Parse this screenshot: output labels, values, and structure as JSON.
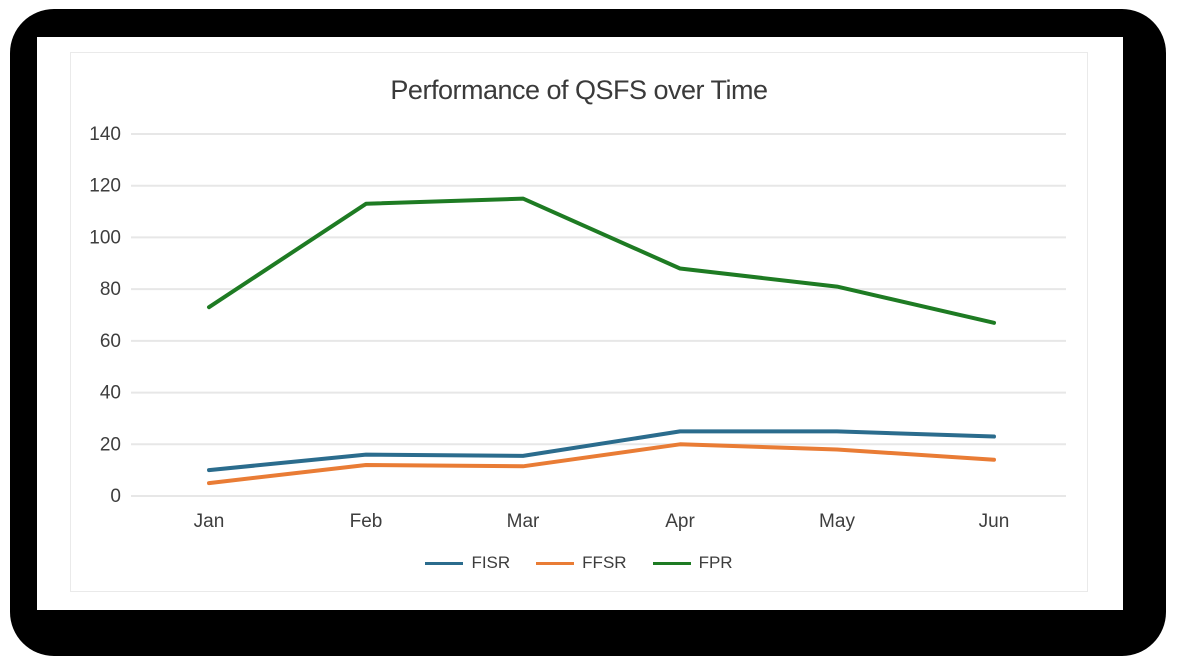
{
  "chart_data": {
    "type": "line",
    "title": "Performance of QSFS over Time",
    "categories": [
      "Jan",
      "Feb",
      "Mar",
      "Apr",
      "May",
      "Jun"
    ],
    "series": [
      {
        "name": "FISR",
        "color": "#2b6c8d",
        "values": [
          10,
          16,
          15.5,
          25,
          25,
          23
        ]
      },
      {
        "name": "FFSR",
        "color": "#e97c35",
        "values": [
          5,
          12,
          11.5,
          20,
          18,
          14
        ]
      },
      {
        "name": "FPR",
        "color": "#1e7b23",
        "values": [
          73,
          113,
          115,
          88,
          81,
          67
        ]
      }
    ],
    "ylim": [
      0,
      140
    ],
    "yticks": [
      0,
      20,
      40,
      60,
      80,
      100,
      120,
      140
    ],
    "grid": "horizontal",
    "legend_position": "bottom",
    "xlabel": "",
    "ylabel": ""
  },
  "colors": {
    "grid_line": "#e7e7e7",
    "tick_text": "#3e3e3e",
    "title_text": "#3a3a3a",
    "card_border": "#eaeaea",
    "frame": "#000000"
  }
}
